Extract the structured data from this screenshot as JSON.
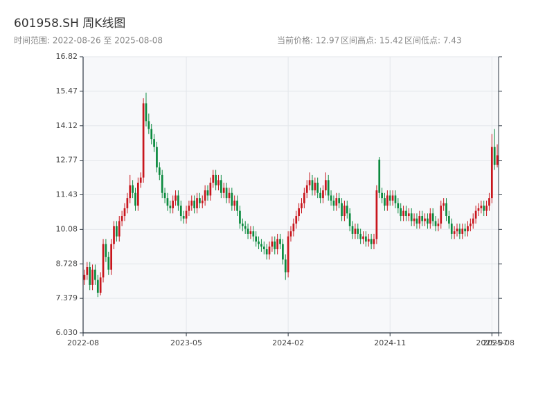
{
  "chart_data": {
    "type": "candlestick",
    "title": "601958.SH 周K线图",
    "subtitle": "时间范围: 2022-08-26 至 2025-08-08",
    "info": [
      "当前价格: 12.97",
      "区间高点: 15.42",
      "区间低点: 7.43"
    ],
    "up_color": "#c8161d",
    "down_color": "#0b8a3e",
    "grid": true,
    "x": [
      "2022-08-26",
      "2022-09-02",
      "2022-09-09",
      "2022-09-16",
      "2022-09-23",
      "2022-09-30",
      "2022-10-07",
      "2022-10-14",
      "2022-10-21",
      "2022-10-28",
      "2022-11-04",
      "2022-11-11",
      "2022-11-18",
      "2022-11-25",
      "2022-12-02",
      "2022-12-09",
      "2022-12-16",
      "2022-12-23",
      "2022-12-30",
      "2023-01-06",
      "2023-01-13",
      "2023-01-20",
      "2023-01-27",
      "2023-02-03",
      "2023-02-10",
      "2023-02-17",
      "2023-02-24",
      "2023-03-03",
      "2023-03-10",
      "2023-03-17",
      "2023-03-24",
      "2023-03-31",
      "2023-04-07",
      "2023-04-14",
      "2023-04-21",
      "2023-04-28",
      "2023-05-05",
      "2023-05-12",
      "2023-05-19",
      "2023-05-26",
      "2023-06-02",
      "2023-06-09",
      "2023-06-16",
      "2023-06-23",
      "2023-06-30",
      "2023-07-07",
      "2023-07-14",
      "2023-07-21",
      "2023-07-28",
      "2023-08-04",
      "2023-08-11",
      "2023-08-18",
      "2023-08-25",
      "2023-09-01",
      "2023-09-08",
      "2023-09-15",
      "2023-09-22",
      "2023-09-29",
      "2023-10-06",
      "2023-10-13",
      "2023-10-20",
      "2023-10-27",
      "2023-11-03",
      "2023-11-10",
      "2023-11-17",
      "2023-11-24",
      "2023-12-01",
      "2023-12-08",
      "2023-12-15",
      "2023-12-22",
      "2023-12-29",
      "2024-01-05",
      "2024-01-12",
      "2024-01-19",
      "2024-01-26",
      "2024-02-02",
      "2024-02-09",
      "2024-02-16",
      "2024-02-23",
      "2024-03-01",
      "2024-03-08",
      "2024-03-15",
      "2024-03-22",
      "2024-03-29",
      "2024-04-05",
      "2024-04-12",
      "2024-04-19",
      "2024-04-26",
      "2024-05-03",
      "2024-05-10",
      "2024-05-17",
      "2024-05-24",
      "2024-05-31",
      "2024-06-07",
      "2024-06-14",
      "2024-06-21",
      "2024-06-28",
      "2024-07-05",
      "2024-07-12",
      "2024-07-19",
      "2024-07-26",
      "2024-08-02",
      "2024-08-09",
      "2024-08-16",
      "2024-08-23",
      "2024-08-30",
      "2024-09-06",
      "2024-09-13",
      "2024-09-20",
      "2024-09-27",
      "2024-10-04",
      "2024-10-11",
      "2024-10-18",
      "2024-10-25",
      "2024-11-01",
      "2024-11-08",
      "2024-11-15",
      "2024-11-22",
      "2024-11-29",
      "2024-12-06",
      "2024-12-13",
      "2024-12-20",
      "2024-12-27",
      "2025-01-03",
      "2025-01-10",
      "2025-01-17",
      "2025-01-24",
      "2025-01-31",
      "2025-02-07",
      "2025-02-14",
      "2025-02-21",
      "2025-02-28",
      "2025-03-07",
      "2025-03-14",
      "2025-03-21",
      "2025-03-28",
      "2025-04-04",
      "2025-04-11",
      "2025-04-18",
      "2025-04-25",
      "2025-05-02",
      "2025-05-09",
      "2025-05-16",
      "2025-05-23",
      "2025-05-30",
      "2025-06-06",
      "2025-06-13",
      "2025-06-20",
      "2025-06-27",
      "2025-07-04",
      "2025-07-11",
      "2025-07-18",
      "2025-07-25",
      "2025-08-01",
      "2025-08-08"
    ],
    "open": [
      8.1,
      8.3,
      8.6,
      7.9,
      8.5,
      8.1,
      7.6,
      8.2,
      9.5,
      9.0,
      8.5,
      9.5,
      10.2,
      9.8,
      10.4,
      10.6,
      10.9,
      11.3,
      11.8,
      11.5,
      11.0,
      11.9,
      12.1,
      15.0,
      14.3,
      14.0,
      13.6,
      13.3,
      12.5,
      12.2,
      11.5,
      11.3,
      11.0,
      10.9,
      11.2,
      11.4,
      11.0,
      10.6,
      10.5,
      10.8,
      11.0,
      11.2,
      10.9,
      11.3,
      11.1,
      11.2,
      11.6,
      11.4,
      11.9,
      12.2,
      11.8,
      12.0,
      11.5,
      11.7,
      11.3,
      11.5,
      11.0,
      11.2,
      10.8,
      10.3,
      10.2,
      10.1,
      9.9,
      10.0,
      9.8,
      9.6,
      9.5,
      9.4,
      9.3,
      9.1,
      9.4,
      9.6,
      9.3,
      9.7,
      9.5,
      8.9,
      8.4,
      9.8,
      10.0,
      10.3,
      10.6,
      10.9,
      11.1,
      11.5,
      11.8,
      12.0,
      11.6,
      11.9,
      11.5,
      11.3,
      11.6,
      12.0,
      11.4,
      11.2,
      11.0,
      11.3,
      11.1,
      10.6,
      11.0,
      10.7,
      10.2,
      9.9,
      10.1,
      9.9,
      9.7,
      9.8,
      9.6,
      9.7,
      9.5,
      9.7,
      12.8,
      11.5,
      11.3,
      11.0,
      11.4,
      11.2,
      11.4,
      11.1,
      10.9,
      10.6,
      10.8,
      10.6,
      10.7,
      10.4,
      10.5,
      10.3,
      10.6,
      10.4,
      10.5,
      10.3,
      10.7,
      10.4,
      10.2,
      10.3,
      11.0,
      11.1,
      10.6,
      10.3,
      9.9,
      10.0,
      10.1,
      9.9,
      10.1,
      10.0,
      10.2,
      10.3,
      10.5,
      10.8,
      10.9,
      11.0,
      10.8,
      11.0,
      11.3,
      13.3,
      12.6
    ],
    "high": [
      8.5,
      8.8,
      8.8,
      8.7,
      8.7,
      8.3,
      8.4,
      9.7,
      9.7,
      9.2,
      9.7,
      10.4,
      10.4,
      10.6,
      10.8,
      11.1,
      11.5,
      12.2,
      12.0,
      11.7,
      12.1,
      12.3,
      15.2,
      15.42,
      14.6,
      14.2,
      13.8,
      13.5,
      12.7,
      12.4,
      11.7,
      11.5,
      11.2,
      11.4,
      11.6,
      11.6,
      11.2,
      10.8,
      11.0,
      11.2,
      11.4,
      11.4,
      11.5,
      11.5,
      11.4,
      11.8,
      11.8,
      12.1,
      12.4,
      12.4,
      12.2,
      12.2,
      11.9,
      11.9,
      11.7,
      11.7,
      11.4,
      11.4,
      11.0,
      10.5,
      10.4,
      10.3,
      10.2,
      10.2,
      10.0,
      9.8,
      9.7,
      9.6,
      9.5,
      9.6,
      9.8,
      9.8,
      9.9,
      9.9,
      9.7,
      9.1,
      10.0,
      10.2,
      10.5,
      10.8,
      11.1,
      11.3,
      11.7,
      12.0,
      12.3,
      12.2,
      12.1,
      12.1,
      11.7,
      11.8,
      12.3,
      12.2,
      11.6,
      11.4,
      11.5,
      11.5,
      11.3,
      11.2,
      11.2,
      10.9,
      10.4,
      10.3,
      10.3,
      10.1,
      10.0,
      10.0,
      9.9,
      9.9,
      9.9,
      11.8,
      12.9,
      11.7,
      11.5,
      11.6,
      11.6,
      11.6,
      11.6,
      11.3,
      11.1,
      11.0,
      11.0,
      10.9,
      10.9,
      10.7,
      10.7,
      10.8,
      10.8,
      10.7,
      10.7,
      10.9,
      10.9,
      10.6,
      10.5,
      11.2,
      11.3,
      11.3,
      10.8,
      10.5,
      10.2,
      10.3,
      10.3,
      10.3,
      10.3,
      10.4,
      10.5,
      10.7,
      11.0,
      11.1,
      11.2,
      11.2,
      11.2,
      11.5,
      13.8,
      14.0,
      13.4
    ],
    "low": [
      7.9,
      8.1,
      7.7,
      7.7,
      7.9,
      7.43,
      7.5,
      8.0,
      8.8,
      8.3,
      8.3,
      9.3,
      9.6,
      9.6,
      10.2,
      10.4,
      10.7,
      11.1,
      11.3,
      10.8,
      10.8,
      11.7,
      11.9,
      14.1,
      13.8,
      13.4,
      13.1,
      12.3,
      12.0,
      11.3,
      11.1,
      10.8,
      10.7,
      10.7,
      11.0,
      10.8,
      10.4,
      10.3,
      10.3,
      10.6,
      10.8,
      10.7,
      10.7,
      10.9,
      10.9,
      11.0,
      11.2,
      11.2,
      11.7,
      11.6,
      11.6,
      11.3,
      11.3,
      11.1,
      11.1,
      10.8,
      10.8,
      10.6,
      10.1,
      10.0,
      9.9,
      9.7,
      9.7,
      9.6,
      9.4,
      9.3,
      9.2,
      9.1,
      8.9,
      8.9,
      9.2,
      9.1,
      9.1,
      9.3,
      8.7,
      8.1,
      8.2,
      9.6,
      9.8,
      10.1,
      10.4,
      10.7,
      10.9,
      11.3,
      11.6,
      11.4,
      11.4,
      11.3,
      11.1,
      11.1,
      11.4,
      11.2,
      11.0,
      10.8,
      10.8,
      10.9,
      10.4,
      10.4,
      10.5,
      10.0,
      9.7,
      9.7,
      9.7,
      9.5,
      9.5,
      9.4,
      9.4,
      9.3,
      9.3,
      9.5,
      11.3,
      11.1,
      10.8,
      10.8,
      11.0,
      11.0,
      10.9,
      10.7,
      10.4,
      10.4,
      10.4,
      10.4,
      10.2,
      10.2,
      10.1,
      10.1,
      10.2,
      10.2,
      10.1,
      10.1,
      10.2,
      10.0,
      10.0,
      10.1,
      10.8,
      10.4,
      10.1,
      9.7,
      9.7,
      9.8,
      9.7,
      9.7,
      9.8,
      9.8,
      10.0,
      10.1,
      10.3,
      10.6,
      10.7,
      10.6,
      10.6,
      10.8,
      11.1,
      12.4,
      12.5
    ],
    "close": [
      8.3,
      8.6,
      7.9,
      8.5,
      8.1,
      7.6,
      8.2,
      9.5,
      9.0,
      8.5,
      9.5,
      10.2,
      9.8,
      10.4,
      10.6,
      10.9,
      11.3,
      11.8,
      11.5,
      11.0,
      11.9,
      12.1,
      15.0,
      14.3,
      14.0,
      13.6,
      13.3,
      12.5,
      12.2,
      11.5,
      11.3,
      11.0,
      10.9,
      11.2,
      11.4,
      11.0,
      10.6,
      10.5,
      10.8,
      11.0,
      11.2,
      10.9,
      11.3,
      11.1,
      11.2,
      11.6,
      11.4,
      11.9,
      12.2,
      11.8,
      12.0,
      11.5,
      11.7,
      11.3,
      11.5,
      11.0,
      11.2,
      10.8,
      10.3,
      10.2,
      10.1,
      9.9,
      10.0,
      9.8,
      9.6,
      9.5,
      9.4,
      9.3,
      9.1,
      9.4,
      9.6,
      9.3,
      9.7,
      9.5,
      8.9,
      8.4,
      9.8,
      10.0,
      10.3,
      10.6,
      10.9,
      11.1,
      11.5,
      11.8,
      12.0,
      11.6,
      11.9,
      11.5,
      11.3,
      11.6,
      12.0,
      11.4,
      11.2,
      11.0,
      11.3,
      11.1,
      10.6,
      11.0,
      10.7,
      10.2,
      9.9,
      10.1,
      9.9,
      9.7,
      9.8,
      9.6,
      9.7,
      9.5,
      9.7,
      11.6,
      11.5,
      11.3,
      11.0,
      11.4,
      11.2,
      11.4,
      11.1,
      10.9,
      10.6,
      10.8,
      10.6,
      10.7,
      10.4,
      10.5,
      10.3,
      10.6,
      10.4,
      10.5,
      10.3,
      10.7,
      10.4,
      10.2,
      10.3,
      11.0,
      11.1,
      10.6,
      10.3,
      9.9,
      10.0,
      10.1,
      9.9,
      10.1,
      10.0,
      10.2,
      10.3,
      10.5,
      10.8,
      10.9,
      11.0,
      10.8,
      11.0,
      11.3,
      13.3,
      12.6,
      12.97
    ],
    "ylim": [
      6.03,
      16.822
    ],
    "yticks": [
      {
        "value": 6.03,
        "label": "6.030"
      },
      7.379,
      8.728,
      {
        "value": 10.077,
        "label": "10.08"
      },
      {
        "value": 11.426,
        "label": "11.43"
      },
      {
        "value": 12.775,
        "label": "12.77"
      },
      {
        "value": 14.124,
        "label": "14.12"
      },
      {
        "value": 15.473,
        "label": "15.47"
      },
      {
        "value": 16.822,
        "label": "16.82"
      }
    ],
    "xticks": [
      {
        "value": "2022-08-26",
        "label": "2022-08"
      },
      {
        "value": "2023-05-19",
        "label": "2023-05"
      },
      {
        "value": "2024-02-09",
        "label": "2024-02"
      },
      {
        "value": "2024-11-01",
        "label": "2024-11"
      },
      {
        "value": "2025-07-25",
        "label": "2025-07"
      },
      {
        "value": "2025-08-08",
        "label": "2025-08"
      }
    ]
  }
}
